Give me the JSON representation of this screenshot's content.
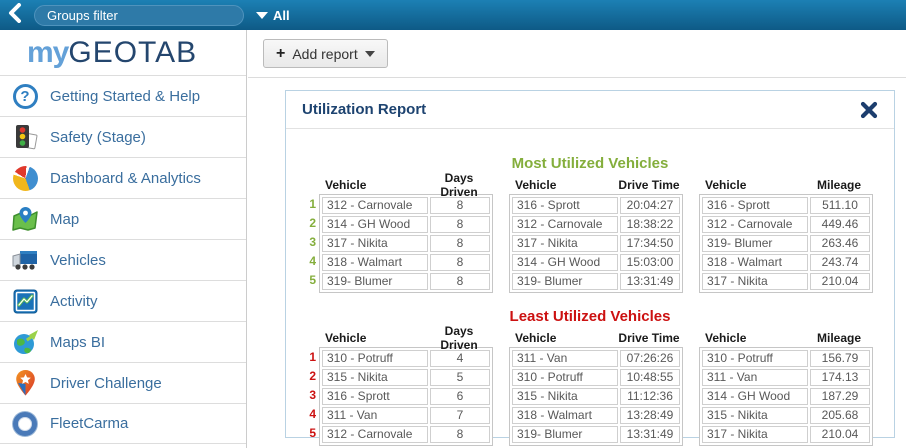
{
  "topbar": {
    "groups_filter_placeholder": "Groups filter",
    "filter_dropdown_label": "All"
  },
  "logo": {
    "prefix": "my",
    "suffix": "GEOTAB"
  },
  "sidebar": {
    "items": [
      {
        "label": "Getting Started & Help",
        "icon": "help-icon"
      },
      {
        "label": "Safety (Stage)",
        "icon": "traffic-light-icon"
      },
      {
        "label": "Dashboard & Analytics",
        "icon": "pie-chart-icon"
      },
      {
        "label": "Map",
        "icon": "map-pin-icon"
      },
      {
        "label": "Vehicles",
        "icon": "truck-icon"
      },
      {
        "label": "Activity",
        "icon": "activity-chart-icon"
      },
      {
        "label": "Maps BI",
        "icon": "globe-arrow-icon"
      },
      {
        "label": "Driver Challenge",
        "icon": "pin-star-icon"
      },
      {
        "label": "FleetCarma",
        "icon": "fleetcarma-ring-icon"
      }
    ]
  },
  "main": {
    "add_report_label": "Add report",
    "report": {
      "title": "Utilization Report",
      "sections": [
        {
          "title": "Most Utilized Vehicles",
          "accent_color": "#84ae3c",
          "tables": [
            {
              "numbered": true,
              "headers": [
                "Vehicle",
                "Days Driven"
              ],
              "rows": [
                [
                  "312 - Carnovale",
                  "8"
                ],
                [
                  "314 - GH Wood",
                  "8"
                ],
                [
                  "317 - Nikita",
                  "8"
                ],
                [
                  "318 - Walmart",
                  "8"
                ],
                [
                  "319- Blumer",
                  "8"
                ]
              ]
            },
            {
              "numbered": false,
              "headers": [
                "Vehicle",
                "Drive Time"
              ],
              "rows": [
                [
                  "316 - Sprott",
                  "20:04:27"
                ],
                [
                  "312 - Carnovale",
                  "18:38:22"
                ],
                [
                  "317 - Nikita",
                  "17:34:50"
                ],
                [
                  "314 - GH Wood",
                  "15:03:00"
                ],
                [
                  "319- Blumer",
                  "13:31:49"
                ]
              ]
            },
            {
              "numbered": false,
              "headers": [
                "Vehicle",
                "Mileage"
              ],
              "rows": [
                [
                  "316 - Sprott",
                  "511.10"
                ],
                [
                  "312 - Carnovale",
                  "449.46"
                ],
                [
                  "319- Blumer",
                  "263.46"
                ],
                [
                  "318 - Walmart",
                  "243.74"
                ],
                [
                  "317 - Nikita",
                  "210.04"
                ]
              ]
            }
          ]
        },
        {
          "title": "Least Utilized Vehicles",
          "accent_color": "#cc1111",
          "tables": [
            {
              "numbered": true,
              "headers": [
                "Vehicle",
                "Days Driven"
              ],
              "rows": [
                [
                  "310 - Potruff",
                  "4"
                ],
                [
                  "315 - Nikita",
                  "5"
                ],
                [
                  "316 - Sprott",
                  "6"
                ],
                [
                  "311 - Van",
                  "7"
                ],
                [
                  "312 - Carnovale",
                  "8"
                ]
              ]
            },
            {
              "numbered": false,
              "headers": [
                "Vehicle",
                "Drive Time"
              ],
              "rows": [
                [
                  "311 - Van",
                  "07:26:26"
                ],
                [
                  "310 - Potruff",
                  "10:48:55"
                ],
                [
                  "315 - Nikita",
                  "11:12:36"
                ],
                [
                  "318 - Walmart",
                  "13:28:49"
                ],
                [
                  "319- Blumer",
                  "13:31:49"
                ]
              ]
            },
            {
              "numbered": false,
              "headers": [
                "Vehicle",
                "Mileage"
              ],
              "rows": [
                [
                  "310 - Potruff",
                  "156.79"
                ],
                [
                  "311 - Van",
                  "174.13"
                ],
                [
                  "314 - GH Wood",
                  "187.29"
                ],
                [
                  "315 - Nikita",
                  "205.68"
                ],
                [
                  "317 - Nikita",
                  "210.04"
                ]
              ]
            }
          ]
        }
      ]
    }
  },
  "colors": {
    "topbar_top": "#1c80b4",
    "topbar_bottom": "#0e5a86",
    "logo_navy": "#24466e",
    "logo_light_blue": "#64a1d8",
    "sidebar_text": "#3a6e9e",
    "panel_border": "#b9d2e3",
    "most_utilized_green": "#84ae3c",
    "least_utilized_red": "#cc1111"
  }
}
